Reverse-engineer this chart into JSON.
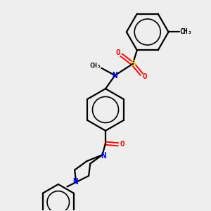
{
  "background_color": "#eeeeee",
  "bond_color": "#000000",
  "N_color": "#0000ff",
  "O_color": "#ff0000",
  "S_color": "#dddd00",
  "line_width": 1.6,
  "figsize": [
    3.0,
    3.0
  ],
  "dpi": 100,
  "xlim": [
    0,
    10
  ],
  "ylim": [
    0,
    10
  ]
}
